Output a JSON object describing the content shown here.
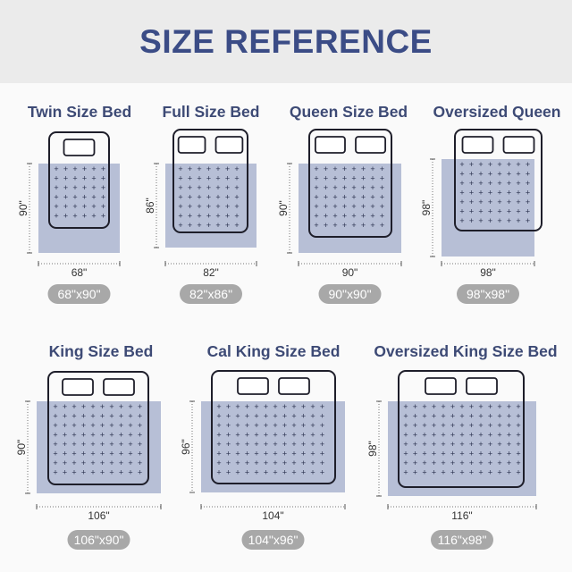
{
  "header": {
    "title": "SIZE REFERENCE"
  },
  "colors": {
    "title": "#3b4c86",
    "blanket": "#b7bfd6",
    "bed_outline": "#1e1e2a",
    "dots": "#2c3350",
    "pill": "#a8a8a8"
  },
  "beds": [
    {
      "name": "Twin Size Bed",
      "width_label": "68\"",
      "height_label": "90\"",
      "size_label": "68\"x90\"",
      "pillows": 1
    },
    {
      "name": "Full Size Bed",
      "width_label": "82\"",
      "height_label": "86\"",
      "size_label": "82\"x86\"",
      "pillows": 2
    },
    {
      "name": "Queen Size Bed",
      "width_label": "90\"",
      "height_label": "90\"",
      "size_label": "90\"x90\"",
      "pillows": 2
    },
    {
      "name": "Oversized Queen",
      "width_label": "98\"",
      "height_label": "98\"",
      "size_label": "98\"x98\"",
      "pillows": 2
    },
    {
      "name": "King Size Bed",
      "width_label": "106\"",
      "height_label": "90\"",
      "size_label": "106\"x90\"",
      "pillows": 2
    },
    {
      "name": "Cal King Size Bed",
      "width_label": "104\"",
      "height_label": "96\"",
      "size_label": "104\"x96\"",
      "pillows": 2
    },
    {
      "name": "Oversized  King Size Bed",
      "width_label": "116\"",
      "height_label": "98\"",
      "size_label": "116\"x98\"",
      "pillows": 2
    }
  ]
}
